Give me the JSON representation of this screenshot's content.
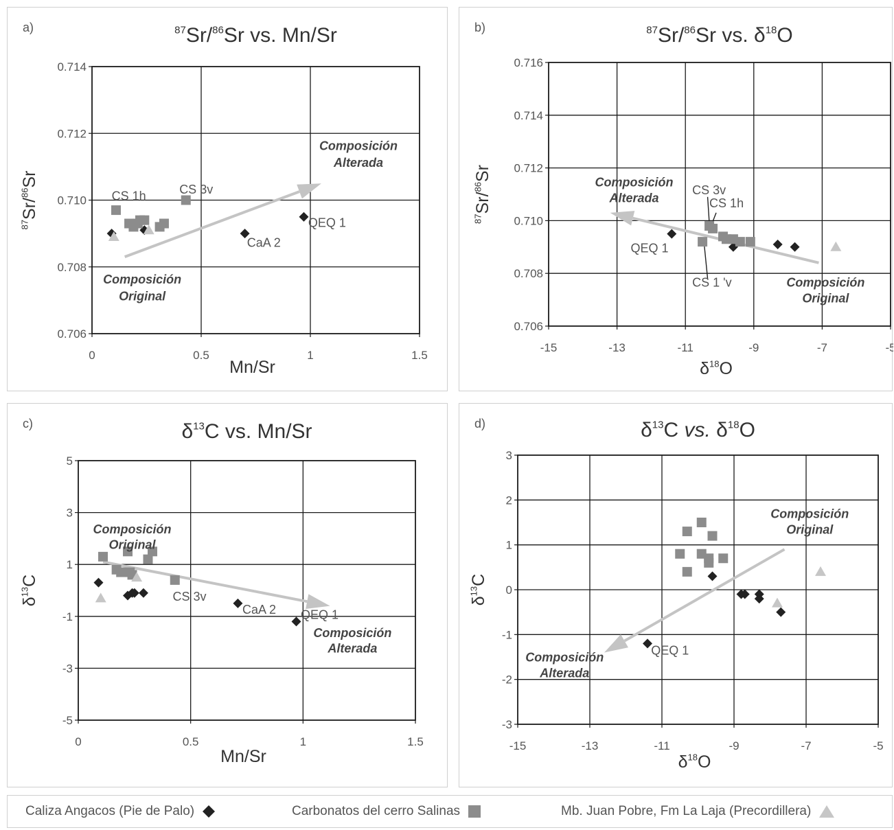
{
  "colors": {
    "series0": "#222222",
    "series1": "#8c8c8c",
    "series2": "#c6c6c6",
    "arrow": "#c4c4c4",
    "axis": "#1a1a1a"
  },
  "legend": {
    "items": [
      {
        "label": "Caliza Angacos (Pie de Palo)",
        "marker": "diamond",
        "color": "#222222"
      },
      {
        "label": "Carbonatos del cerro Salinas",
        "marker": "square",
        "color": "#8c8c8c"
      },
      {
        "label": "Mb. Juan Pobre, Fm La Laja (Precordillera)",
        "marker": "triangle",
        "color": "#c6c6c6"
      }
    ]
  },
  "chart_data": [
    {
      "type": "scatter",
      "panel_label": "a)",
      "title": {
        "pre": "",
        "sup1": "87",
        "mid": "Sr/",
        "sup2": "86",
        "post": "Sr vs. Mn/Sr"
      },
      "xlabel": "Mn/Sr",
      "ylabel": {
        "sup1": "87",
        "mid": "Sr/",
        "sup2": "86",
        "post": "Sr"
      },
      "xlim": [
        0,
        1.5
      ],
      "ylim": [
        0.706,
        0.714
      ],
      "xticks": [
        0,
        0.5,
        1,
        1.5
      ],
      "xtick_labels": [
        "0",
        "0.5",
        "1",
        "1.5"
      ],
      "yticks": [
        0.706,
        0.708,
        0.71,
        0.712,
        0.714
      ],
      "ytick_labels": [
        "0.706",
        "0.708",
        "0.710",
        "0.712",
        "0.714"
      ],
      "grid": true,
      "series": [
        {
          "name": "Caliza Angacos (Pie de Palo)",
          "marker": "diamond",
          "points": [
            [
              0.09,
              0.709
            ],
            [
              0.24,
              0.7091
            ],
            [
              0.7,
              0.709
            ],
            [
              0.97,
              0.7095
            ]
          ]
        },
        {
          "name": "Carbonatos del cerro Salinas",
          "marker": "square",
          "points": [
            [
              0.11,
              0.7097
            ],
            [
              0.17,
              0.7093
            ],
            [
              0.19,
              0.7092
            ],
            [
              0.21,
              0.7093
            ],
            [
              0.22,
              0.7094
            ],
            [
              0.24,
              0.7094
            ],
            [
              0.31,
              0.7092
            ],
            [
              0.33,
              0.7093
            ],
            [
              0.43,
              0.71
            ]
          ]
        },
        {
          "name": "Mb. Juan Pobre, Fm La Laja (Precordillera)",
          "marker": "triangle",
          "points": [
            [
              0.1,
              0.7089
            ],
            [
              0.26,
              0.7091
            ]
          ]
        }
      ],
      "arrows": [
        {
          "from": [
            0.15,
            0.7083
          ],
          "to": [
            1.05,
            0.7105
          ]
        }
      ],
      "annotations": [
        {
          "text": "CS 1h",
          "x": 0.09,
          "y": 0.71,
          "anchor": "start",
          "style": "label"
        },
        {
          "text": "CS 3v",
          "x": 0.4,
          "y": 0.7102,
          "anchor": "start",
          "style": "label"
        },
        {
          "text": "CaA 2",
          "x": 0.71,
          "y": 0.7086,
          "anchor": "start",
          "style": "label"
        },
        {
          "text": "QEQ 1",
          "x": 0.99,
          "y": 0.7092,
          "anchor": "start",
          "style": "label"
        },
        {
          "text": "Composición",
          "x": 1.22,
          "y": 0.7115,
          "anchor": "middle",
          "style": "bold"
        },
        {
          "text": "Alterada",
          "x": 1.22,
          "y": 0.711,
          "anchor": "middle",
          "style": "bold"
        },
        {
          "text": "Composición",
          "x": 0.23,
          "y": 0.7075,
          "anchor": "middle",
          "style": "bold"
        },
        {
          "text": "Original",
          "x": 0.23,
          "y": 0.707,
          "anchor": "middle",
          "style": "bold"
        }
      ]
    },
    {
      "type": "scatter",
      "panel_label": "b)",
      "title": {
        "pre": "",
        "sup1": "87",
        "mid": "Sr/",
        "sup2": "86",
        "post": "Sr vs. δ",
        "sup3": "18",
        "post2": "O"
      },
      "xlabel": {
        "pre": "δ",
        "sup": "18",
        "post": "O"
      },
      "ylabel": {
        "sup1": "87",
        "mid": "Sr/",
        "sup2": "86",
        "post": "Sr"
      },
      "xlim": [
        -15,
        -5
      ],
      "ylim": [
        0.706,
        0.716
      ],
      "xticks": [
        -15,
        -13,
        -11,
        -9,
        -7,
        -5
      ],
      "xtick_labels": [
        "-15",
        "-13",
        "-11",
        "-9",
        "-7",
        "-5"
      ],
      "yticks": [
        0.706,
        0.708,
        0.71,
        0.712,
        0.714,
        0.716
      ],
      "ytick_labels": [
        "0.706",
        "0.708",
        "0.710",
        "0.712",
        "0.714",
        "0.716"
      ],
      "grid": true,
      "series": [
        {
          "name": "Caliza Angacos (Pie de Palo)",
          "marker": "diamond",
          "points": [
            [
              -11.4,
              0.7095
            ],
            [
              -9.6,
              0.709
            ],
            [
              -8.3,
              0.7091
            ],
            [
              -7.8,
              0.709
            ]
          ]
        },
        {
          "name": "Carbonatos del cerro Salinas",
          "marker": "square",
          "points": [
            [
              -10.5,
              0.7092
            ],
            [
              -10.3,
              0.7098
            ],
            [
              -10.2,
              0.7097
            ],
            [
              -9.9,
              0.7094
            ],
            [
              -9.8,
              0.7093
            ],
            [
              -9.6,
              0.7093
            ],
            [
              -9.4,
              0.7092
            ],
            [
              -9.1,
              0.7092
            ]
          ]
        },
        {
          "name": "Mb. Juan Pobre, Fm La Laja (Precordillera)",
          "marker": "triangle",
          "points": [
            [
              -6.6,
              0.709
            ]
          ]
        }
      ],
      "arrows": [
        {
          "from": [
            -7.1,
            0.7084
          ],
          "to": [
            -13.2,
            0.7103
          ]
        }
      ],
      "annotations": [
        {
          "text": "CS 3v",
          "x": -10.8,
          "y": 0.711,
          "anchor": "start",
          "style": "label"
        },
        {
          "text": "CS 1h",
          "x": -10.3,
          "y": 0.7105,
          "anchor": "start",
          "style": "label"
        },
        {
          "text": "QEQ 1",
          "x": -12.6,
          "y": 0.7088,
          "anchor": "start",
          "style": "label"
        },
        {
          "text": "CS 1 'v",
          "x": -10.8,
          "y": 0.7075,
          "anchor": "start",
          "style": "label"
        },
        {
          "text": "Composición",
          "x": -12.5,
          "y": 0.7113,
          "anchor": "middle",
          "style": "bold"
        },
        {
          "text": "Alterada",
          "x": -12.5,
          "y": 0.7107,
          "anchor": "middle",
          "style": "bold"
        },
        {
          "text": "Composición",
          "x": -6.9,
          "y": 0.7075,
          "anchor": "middle",
          "style": "bold"
        },
        {
          "text": "Original",
          "x": -6.9,
          "y": 0.7069,
          "anchor": "middle",
          "style": "bold"
        }
      ],
      "leaders": [
        {
          "from": [
            -10.35,
            0.7109
          ],
          "to": [
            -10.3,
            0.7099
          ]
        },
        {
          "from": [
            -10.1,
            0.7103
          ],
          "to": [
            -10.25,
            0.7098
          ]
        },
        {
          "from": [
            -10.35,
            0.7078
          ],
          "to": [
            -10.45,
            0.7091
          ]
        }
      ]
    },
    {
      "type": "scatter",
      "panel_label": "c)",
      "title": {
        "pre": "δ",
        "sup1": "13",
        "mid": "C vs. Mn/Sr"
      },
      "xlabel": "Mn/Sr",
      "ylabel": {
        "pre": "δ",
        "sup1": "13",
        "post": "C"
      },
      "xlim": [
        0,
        1.5
      ],
      "ylim": [
        -5,
        5
      ],
      "xticks": [
        0,
        0.5,
        1,
        1.5
      ],
      "xtick_labels": [
        "0",
        "0.5",
        "1",
        "1.5"
      ],
      "yticks": [
        -5,
        -3,
        -1,
        1,
        3,
        5
      ],
      "ytick_labels": [
        "-5",
        "-3",
        "-1",
        "1",
        "3",
        "5"
      ],
      "grid": true,
      "series": [
        {
          "name": "Caliza Angacos (Pie de Palo)",
          "marker": "diamond",
          "points": [
            [
              0.09,
              0.3
            ],
            [
              0.22,
              -0.2
            ],
            [
              0.24,
              -0.1
            ],
            [
              0.25,
              -0.1
            ],
            [
              0.29,
              -0.1
            ],
            [
              0.71,
              -0.5
            ],
            [
              0.97,
              -1.2
            ]
          ]
        },
        {
          "name": "Carbonatos del cerro Salinas",
          "marker": "square",
          "points": [
            [
              0.11,
              1.3
            ],
            [
              0.17,
              0.8
            ],
            [
              0.19,
              0.7
            ],
            [
              0.22,
              1.5
            ],
            [
              0.23,
              0.7
            ],
            [
              0.24,
              0.6
            ],
            [
              0.31,
              1.2
            ],
            [
              0.33,
              1.5
            ],
            [
              0.43,
              0.4
            ]
          ]
        },
        {
          "name": "Mb. Juan Pobre, Fm La Laja (Precordillera)",
          "marker": "triangle",
          "points": [
            [
              0.1,
              -0.3
            ],
            [
              0.26,
              0.5
            ]
          ]
        }
      ],
      "arrows": [
        {
          "from": [
            0.11,
            1.1
          ],
          "to": [
            1.12,
            -0.6
          ]
        }
      ],
      "annotations": [
        {
          "text": "CS 3v",
          "x": 0.42,
          "y": -0.4,
          "anchor": "start",
          "style": "label"
        },
        {
          "text": "CaA 2",
          "x": 0.73,
          "y": -0.9,
          "anchor": "start",
          "style": "label"
        },
        {
          "text": "QEQ 1",
          "x": 0.99,
          "y": -1.1,
          "anchor": "start",
          "style": "label"
        },
        {
          "text": "Composición",
          "x": 0.24,
          "y": 2.2,
          "anchor": "middle",
          "style": "bold"
        },
        {
          "text": "Original",
          "x": 0.24,
          "y": 1.6,
          "anchor": "middle",
          "style": "bold"
        },
        {
          "text": "Composición",
          "x": 1.22,
          "y": -1.8,
          "anchor": "middle",
          "style": "bold"
        },
        {
          "text": "Alterada",
          "x": 1.22,
          "y": -2.4,
          "anchor": "middle",
          "style": "bold"
        }
      ]
    },
    {
      "type": "scatter",
      "panel_label": "d)",
      "title": {
        "pre": "δ",
        "sup1": "13",
        "mid": "C  ",
        "ital": "vs.",
        "mid2": " δ",
        "sup2": "18",
        "post": "O"
      },
      "xlabel": {
        "pre": "δ",
        "sup": "18",
        "post": "O"
      },
      "ylabel": {
        "pre": "δ",
        "sup1": "13",
        "post": "C"
      },
      "xlim": [
        -15,
        -5
      ],
      "ylim": [
        -3,
        3
      ],
      "xticks": [
        -15,
        -13,
        -11,
        -9,
        -7,
        -5
      ],
      "xtick_labels": [
        "-15",
        "-13",
        "-11",
        "-9",
        "-7",
        "-5"
      ],
      "yticks": [
        -3,
        -2,
        -1,
        0,
        1,
        2,
        3
      ],
      "ytick_labels": [
        "-3",
        "-2",
        "-1",
        "0",
        "1",
        "2",
        "3"
      ],
      "grid": true,
      "series": [
        {
          "name": "Caliza Angacos (Pie de Palo)",
          "marker": "diamond",
          "points": [
            [
              -11.4,
              -1.2
            ],
            [
              -9.6,
              0.3
            ],
            [
              -8.8,
              -0.1
            ],
            [
              -8.7,
              -0.1
            ],
            [
              -8.3,
              -0.1
            ],
            [
              -8.3,
              -0.2
            ],
            [
              -7.7,
              -0.5
            ]
          ]
        },
        {
          "name": "Carbonatos del cerro Salinas",
          "marker": "square",
          "points": [
            [
              -10.5,
              0.8
            ],
            [
              -10.3,
              1.3
            ],
            [
              -10.3,
              0.4
            ],
            [
              -9.9,
              1.5
            ],
            [
              -9.9,
              0.8
            ],
            [
              -9.7,
              0.7
            ],
            [
              -9.7,
              0.6
            ],
            [
              -9.6,
              1.2
            ],
            [
              -9.3,
              0.7
            ]
          ]
        },
        {
          "name": "Mb. Juan Pobre, Fm La Laja (Precordillera)",
          "marker": "triangle",
          "points": [
            [
              -7.8,
              -0.3
            ],
            [
              -6.6,
              0.4
            ]
          ]
        }
      ],
      "arrows": [
        {
          "from": [
            -7.6,
            0.9
          ],
          "to": [
            -12.6,
            -1.4
          ]
        }
      ],
      "annotations": [
        {
          "text": "QEQ 1",
          "x": -11.3,
          "y": -1.45,
          "anchor": "start",
          "style": "label"
        },
        {
          "text": "Composición",
          "x": -6.9,
          "y": 1.6,
          "anchor": "middle",
          "style": "bold"
        },
        {
          "text": "Original",
          "x": -6.9,
          "y": 1.25,
          "anchor": "middle",
          "style": "bold"
        },
        {
          "text": "Composición",
          "x": -13.7,
          "y": -1.6,
          "anchor": "middle",
          "style": "bold"
        },
        {
          "text": "Alterada",
          "x": -13.7,
          "y": -1.95,
          "anchor": "middle",
          "style": "bold"
        }
      ]
    }
  ]
}
